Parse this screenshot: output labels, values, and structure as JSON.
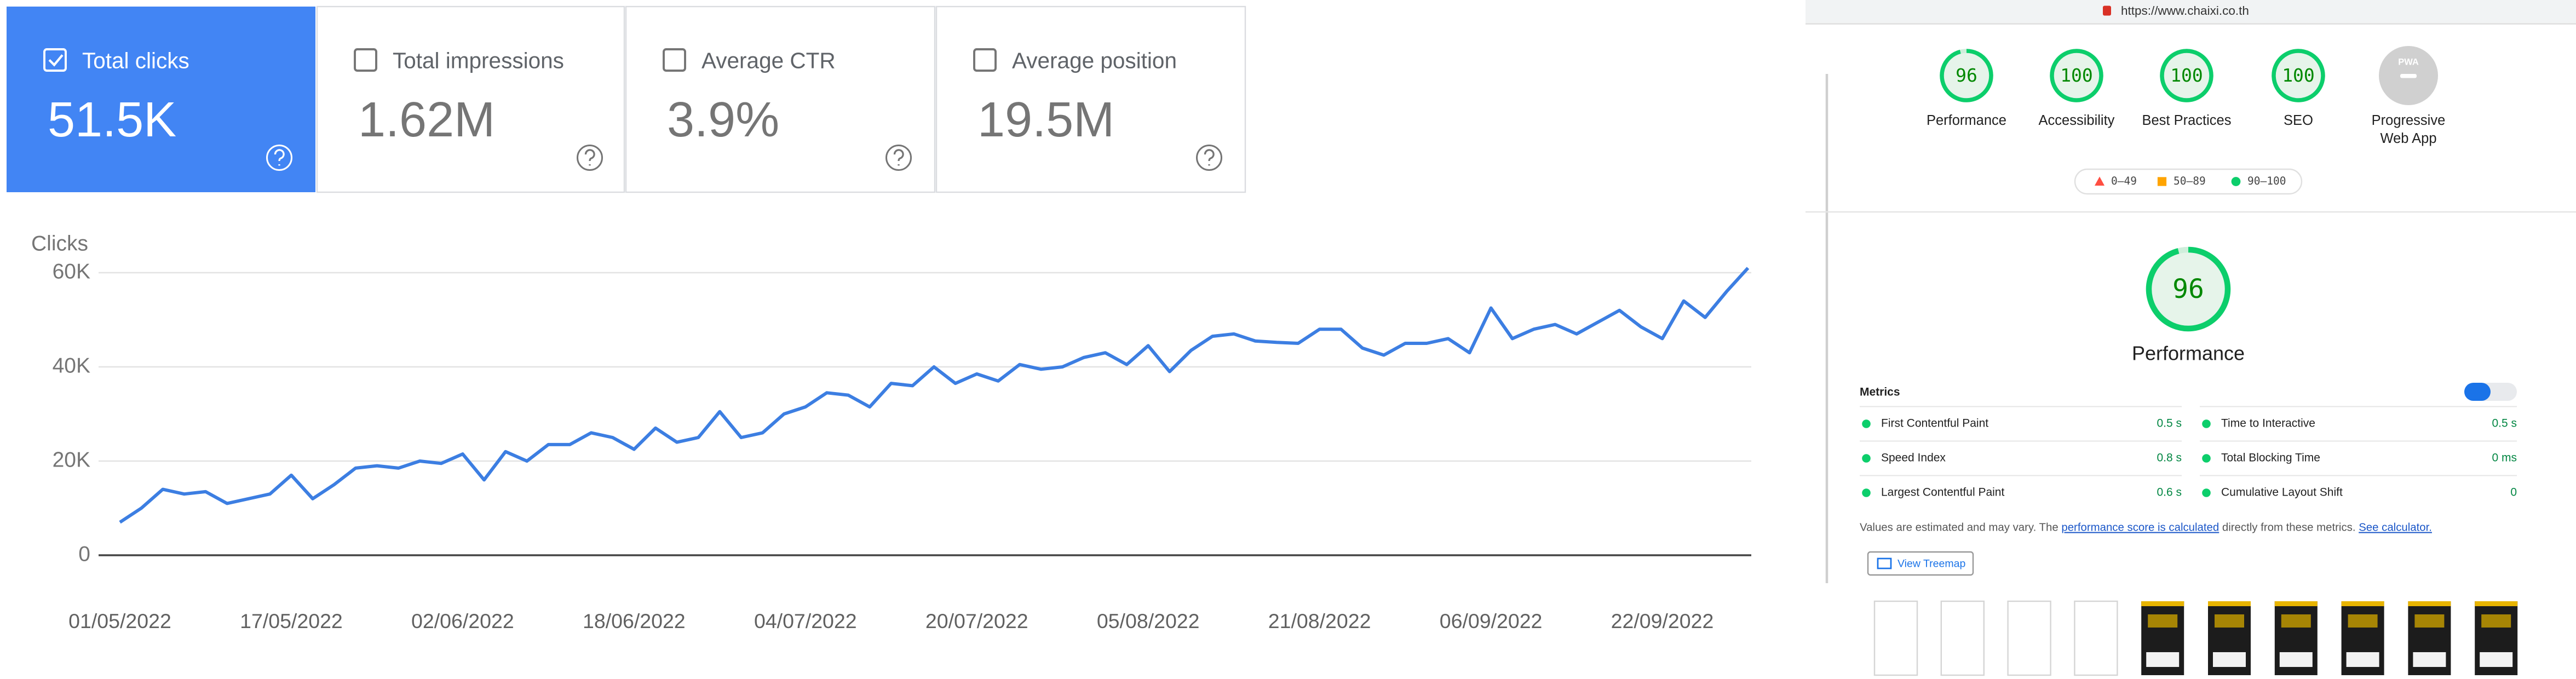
{
  "chart_data": {
    "type": "line",
    "y_label": "Clicks",
    "categories": [
      "01/05/2022",
      null,
      null,
      null,
      null,
      null,
      null,
      null,
      "17/05/2022",
      null,
      null,
      null,
      null,
      null,
      null,
      null,
      "02/06/2022",
      null,
      null,
      null,
      null,
      null,
      null,
      null,
      "18/06/2022",
      null,
      null,
      null,
      null,
      null,
      null,
      null,
      "04/07/2022",
      null,
      null,
      null,
      null,
      null,
      null,
      null,
      "20/07/2022",
      null,
      null,
      null,
      null,
      null,
      null,
      null,
      "05/08/2022",
      null,
      null,
      null,
      null,
      null,
      null,
      null,
      "21/08/2022",
      null,
      null,
      null,
      null,
      null,
      null,
      null,
      "06/09/2022",
      null,
      null,
      null,
      null,
      null,
      null,
      null,
      "22/09/2022",
      null,
      null,
      null,
      null
    ],
    "values": [
      7000,
      10000,
      14000,
      13000,
      13500,
      11000,
      12000,
      13000,
      17000,
      12000,
      15000,
      18500,
      19000,
      18500,
      20000,
      19500,
      21500,
      16000,
      22000,
      20000,
      23500,
      23500,
      26000,
      25000,
      22500,
      27000,
      24000,
      25000,
      30500,
      25000,
      26000,
      30000,
      31500,
      34500,
      34000,
      31500,
      36500,
      36000,
      40000,
      36500,
      38500,
      37000,
      40500,
      39500,
      40000,
      42000,
      43000,
      40500,
      44500,
      39000,
      43500,
      46500,
      47000,
      45500,
      45200,
      45000,
      48000,
      48000,
      44000,
      42500,
      45000,
      45000,
      46000,
      43000,
      52500,
      46000,
      48000,
      49000,
      47000,
      49500,
      52000,
      48500,
      46000,
      54000,
      50500,
      56000,
      61000
    ],
    "color": "#3c7ee2",
    "ylim": [
      0,
      60000
    ],
    "yticks": [
      {
        "value": 0,
        "label": "0"
      },
      {
        "value": 20000,
        "label": "20K"
      },
      {
        "value": 40000,
        "label": "40K"
      },
      {
        "value": 60000,
        "label": "60K"
      }
    ],
    "grid": true
  },
  "cards": [
    {
      "label": "Total clicks",
      "value": "51.5K",
      "checked": true
    },
    {
      "label": "Total impressions",
      "value": "1.62M",
      "checked": false
    },
    {
      "label": "Average CTR",
      "value": "3.9%",
      "checked": false
    },
    {
      "label": "Average position",
      "value": "19.5M",
      "checked": false
    }
  ],
  "lighthouse": {
    "url": "https://www.chaixi.co.th",
    "gauges": [
      {
        "label": "Performance",
        "score": 96
      },
      {
        "label": "Accessibility",
        "score": 100
      },
      {
        "label": "Best Practices",
        "score": 100
      },
      {
        "label": "SEO",
        "score": 100
      }
    ],
    "pwa": {
      "label": "Progressive Web App",
      "badge": "PWA"
    },
    "legend": [
      "0–49",
      "50–89",
      "90–100"
    ],
    "main": {
      "score": 96,
      "label": "Performance"
    },
    "metrics_title": "Metrics",
    "metrics": [
      {
        "label": "First Contentful Paint",
        "value": "0.5 s"
      },
      {
        "label": "Time to Interactive",
        "value": "0.5 s"
      },
      {
        "label": "Speed Index",
        "value": "0.8 s"
      },
      {
        "label": "Total Blocking Time",
        "value": "0 ms"
      },
      {
        "label": "Largest Contentful Paint",
        "value": "0.6 s"
      },
      {
        "label": "Cumulative Layout Shift",
        "value": "0"
      }
    ],
    "note": [
      "Values are estimated and may vary. The ",
      "performance score is calculated",
      " directly from these metrics. ",
      "See calculator."
    ],
    "treemap_button": "View Treemap"
  }
}
